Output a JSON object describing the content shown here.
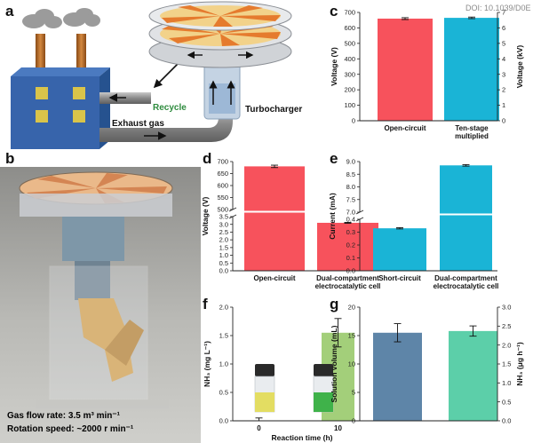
{
  "doi": "DOI: 10.1039/D0E",
  "panel_a": {
    "letter": "a",
    "exhaust_label": "Exhaust gas",
    "recycle_label": "Recycle",
    "turbo_label": "Turbocharger"
  },
  "panel_b": {
    "letter": "b",
    "gas_flow": "Gas flow rate: 3.5 m³ min⁻¹",
    "rotation": "Rotation speed: ~2000 r min⁻¹"
  },
  "colors": {
    "red": "#f7525c",
    "cyan": "#1ab4d6",
    "green": "#a3cf7a",
    "steel": "#5e85a8",
    "teal": "#5ccfa9"
  },
  "chart_data": [
    {
      "panel": "c",
      "type": "bar",
      "categories": [
        "Open-circuit",
        "Ten-stage multiplied"
      ],
      "values": [
        660,
        665
      ],
      "errors": [
        6,
        5
      ],
      "ylabel": "Voltage (V)",
      "ylim": [
        0,
        700
      ],
      "y_ticks": [
        "0",
        "100",
        "200",
        "300",
        "400",
        "500",
        "600",
        "700"
      ],
      "y2label": "Voltage (kV)",
      "y2lim": [
        0,
        7
      ],
      "y2_ticks": [
        "0",
        "1",
        "2",
        "3",
        "4",
        "5",
        "6",
        "7"
      ]
    },
    {
      "panel": "d",
      "type": "bar",
      "categories": [
        "Open-circuit",
        "Dual-compartment electrocatalytic cell"
      ],
      "values": [
        680,
        3.1
      ],
      "errors": [
        5,
        0.03
      ],
      "ylabel": "Voltage (V)",
      "broken_axis": true,
      "y_ticks_upper": [
        "500",
        "550",
        "600",
        "650",
        "700"
      ],
      "y_ticks_lower": [
        "0.0",
        "0.5",
        "1.0",
        "1.5",
        "2.0",
        "2.5",
        "3.0",
        "3.5"
      ]
    },
    {
      "panel": "e",
      "type": "bar",
      "categories": [
        "Short-circuit",
        "Dual-compartment electrocatalytic cell"
      ],
      "values": [
        0.33,
        8.85
      ],
      "errors": [
        0.005,
        0.03
      ],
      "ylabel": "Current (mA)",
      "broken_axis": true,
      "y_ticks_upper": [
        "7.0",
        "7.5",
        "8.0",
        "8.5",
        "9.0"
      ],
      "y_ticks_lower": [
        "0.0",
        "0.1",
        "0.2",
        "0.3",
        "0.4"
      ]
    },
    {
      "panel": "f",
      "type": "bar",
      "categories": [
        "0",
        "10"
      ],
      "values": [
        0.0,
        1.55
      ],
      "errors": [
        0.05,
        0.25
      ],
      "ylabel": "NH₃ (mg L⁻¹)",
      "xlabel": "Reaction time (h)",
      "ylim": [
        0,
        2.0
      ],
      "y_ticks": [
        "0.0",
        "0.5",
        "1.0",
        "1.5",
        "2.0"
      ]
    },
    {
      "panel": "g",
      "type": "bar",
      "categories": [
        "",
        ""
      ],
      "values": [
        15.5,
        15.8
      ],
      "errors": [
        1.6,
        0.9
      ],
      "ylabel": "Solution volume (mL)",
      "ylim": [
        0,
        20
      ],
      "y_ticks": [
        "0",
        "5",
        "10",
        "15",
        "20"
      ],
      "y2label": "NH₃ (μg h⁻¹)",
      "y2lim": [
        0,
        3.0
      ],
      "y2_ticks": [
        "0.0",
        "0.5",
        "1.0",
        "1.5",
        "2.0",
        "2.5",
        "3.0"
      ]
    }
  ]
}
